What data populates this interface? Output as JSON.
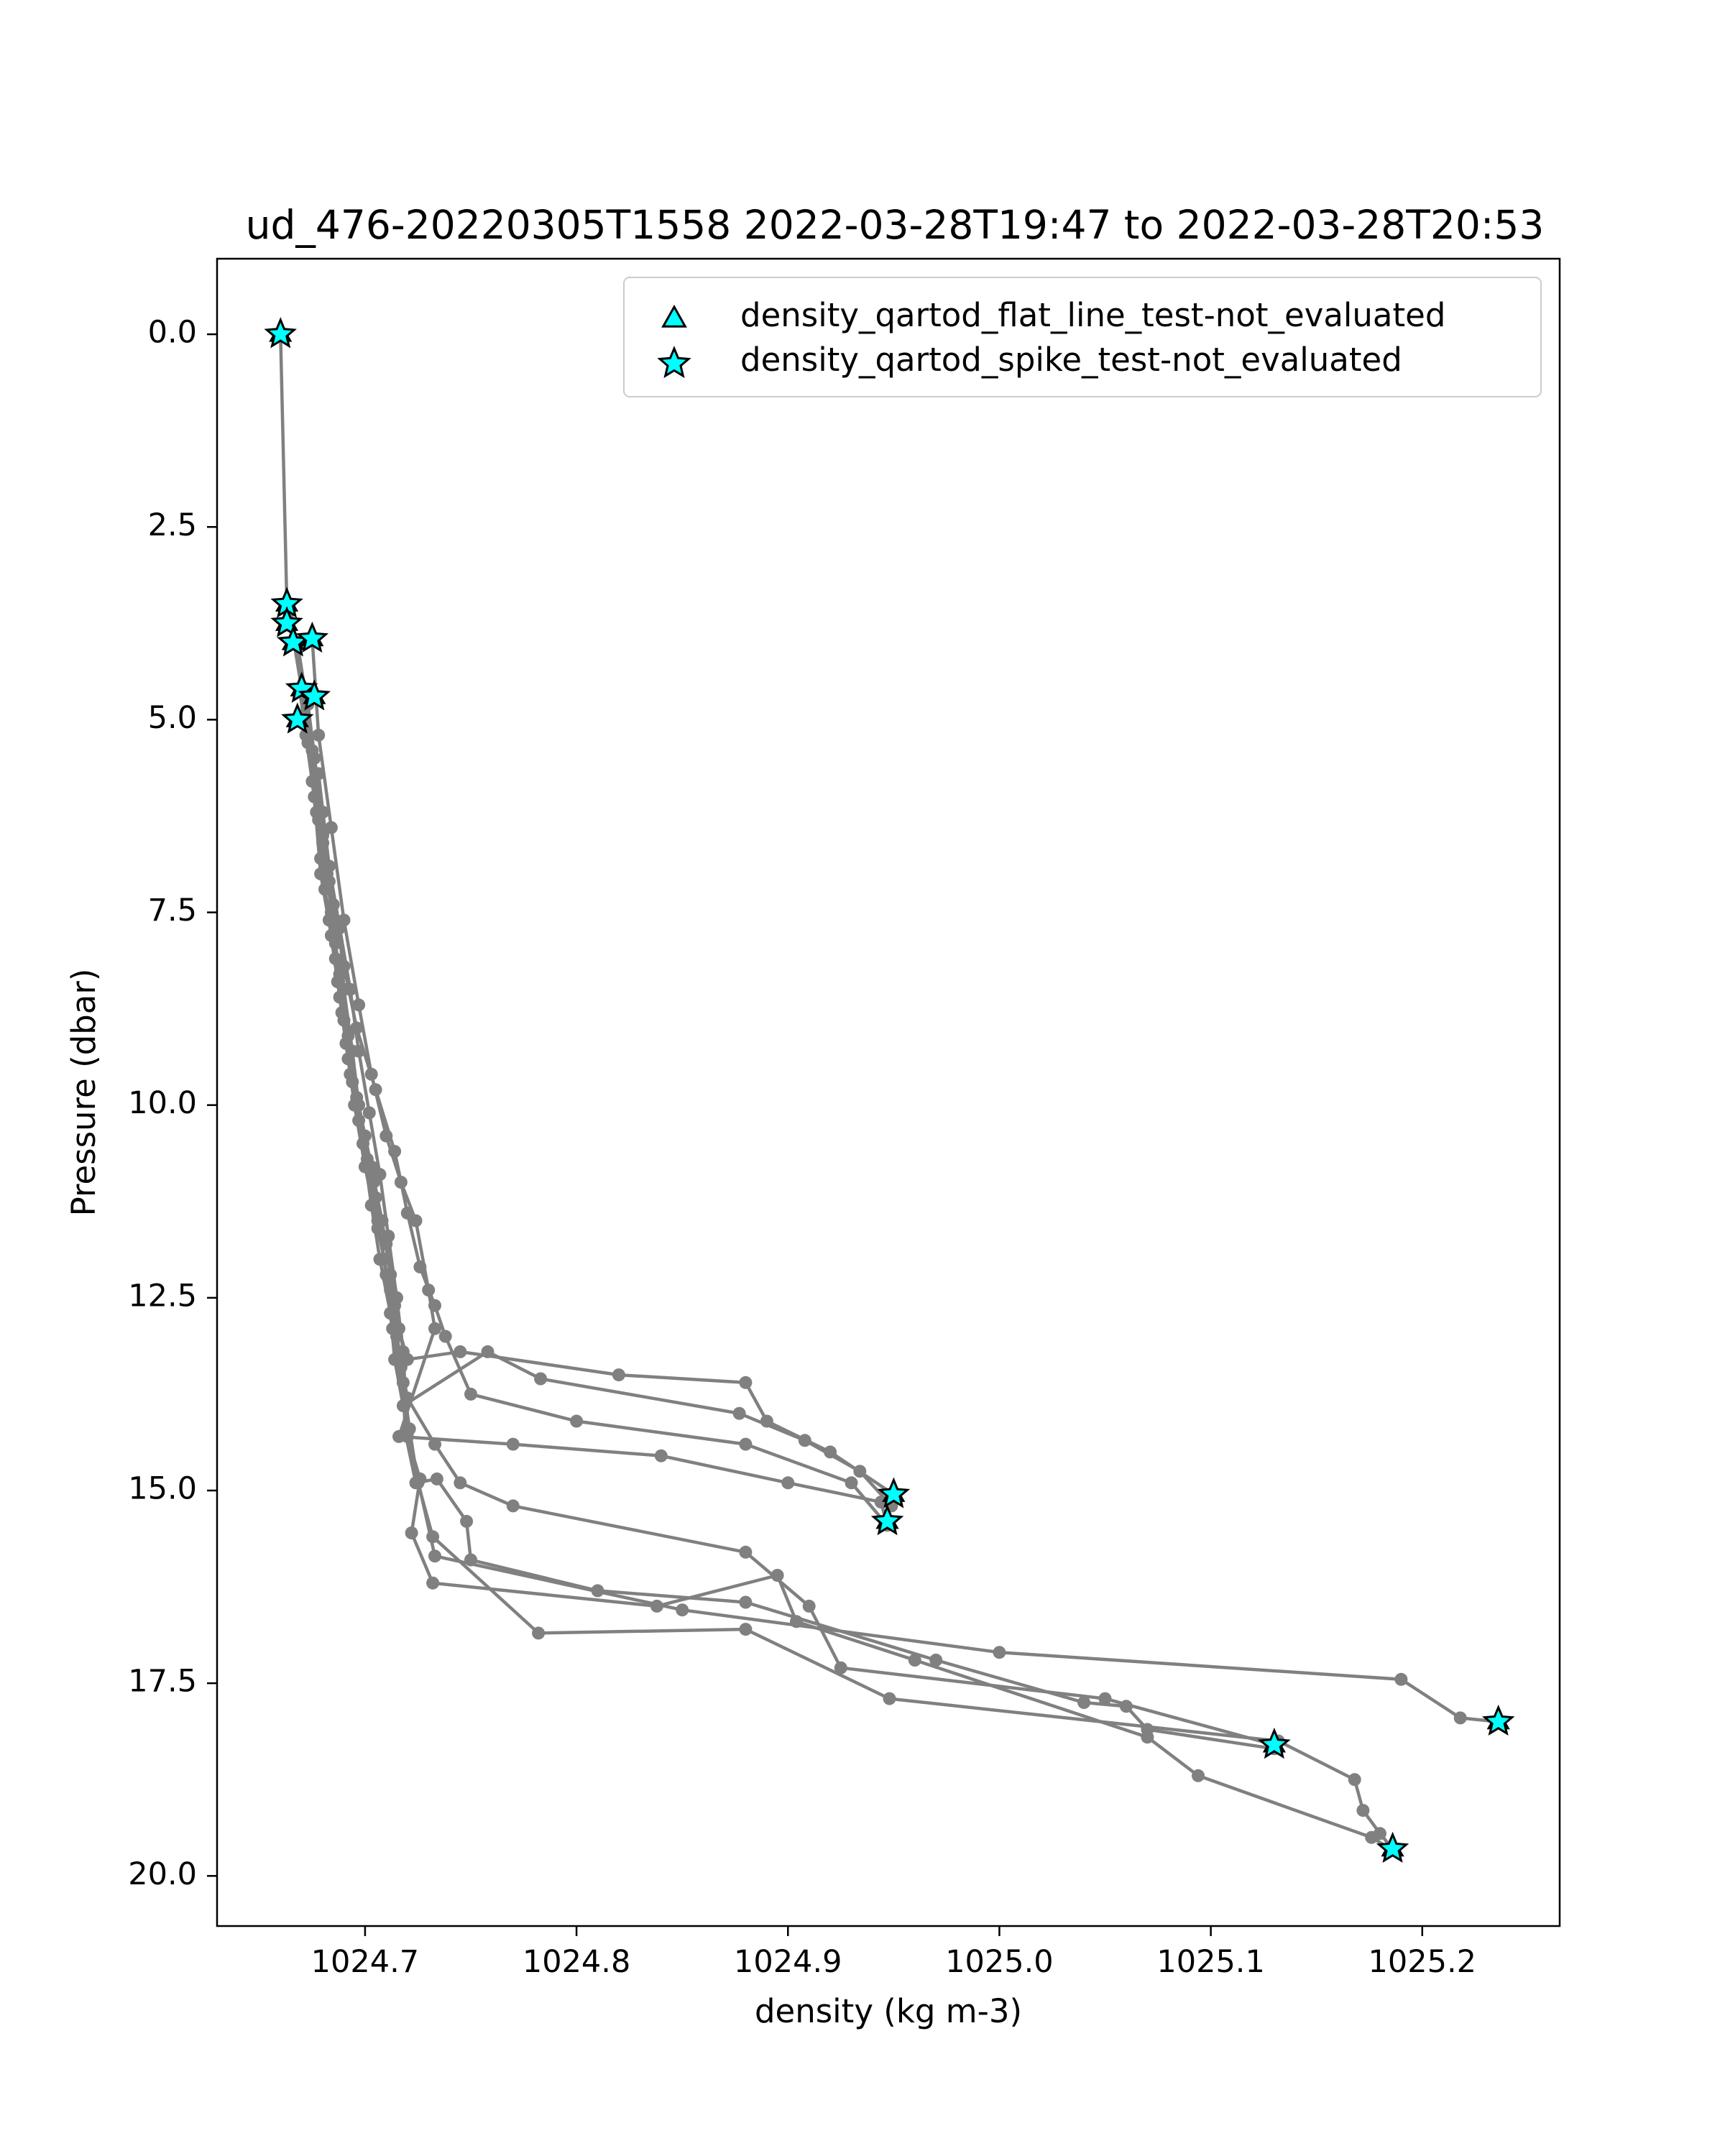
{
  "chart_data": {
    "type": "scatter",
    "title": "ud_476-20220305T1558 2022-03-28T19:47 to 2022-03-28T20:53",
    "xlabel": "density (kg m-3)",
    "ylabel": "Pressure (dbar)",
    "xlim": [
      1024.63,
      1025.265
    ],
    "ylim": [
      20.65,
      -0.98
    ],
    "y_inverted": true,
    "grid": false,
    "legend_position": "upper-right",
    "xticks": [
      1024.7,
      1024.8,
      1024.9,
      1025.0,
      1025.1,
      1025.2
    ],
    "xtick_labels": [
      "1024.7",
      "1024.8",
      "1024.9",
      "1025.0",
      "1025.1",
      "1025.2"
    ],
    "yticks": [
      0.0,
      2.5,
      5.0,
      7.5,
      10.0,
      12.5,
      15.0,
      17.5,
      20.0
    ],
    "ytick_labels": [
      "0.0",
      "2.5",
      "5.0",
      "7.5",
      "10.0",
      "12.5",
      "15.0",
      "17.5",
      "20.0"
    ],
    "colors": {
      "profile_line": "#808080",
      "marker_fill": "#00ffff",
      "marker_edge": "#000000",
      "axes": "#000000"
    },
    "series": [
      {
        "style": "profile",
        "segments": [
          [
            [
              1024.66,
              0.0
            ],
            [
              1024.663,
              3.5
            ],
            [
              1024.668,
              4.0
            ],
            [
              1024.672,
              4.7
            ],
            [
              1024.676,
              5.5
            ],
            [
              1024.68,
              6.2
            ],
            [
              1024.682,
              7.0
            ],
            [
              1024.688,
              7.7
            ],
            [
              1024.69,
              8.5
            ],
            [
              1024.694,
              9.3
            ],
            [
              1024.697,
              10.0
            ],
            [
              1024.703,
              10.8
            ],
            [
              1024.708,
              11.5
            ],
            [
              1024.712,
              12.2
            ],
            [
              1024.716,
              12.9
            ],
            [
              1024.72,
              13.3
            ],
            [
              1024.745,
              13.2
            ],
            [
              1024.82,
              13.5
            ],
            [
              1024.88,
              13.6
            ],
            [
              1024.89,
              14.1
            ],
            [
              1024.92,
              14.5
            ],
            [
              1024.95,
              15.05
            ]
          ],
          [
            [
              1024.664,
              3.6
            ],
            [
              1024.67,
              4.6
            ],
            [
              1024.675,
              5.4
            ],
            [
              1024.678,
              6.3
            ],
            [
              1024.683,
              7.1
            ],
            [
              1024.686,
              7.9
            ],
            [
              1024.689,
              8.8
            ],
            [
              1024.693,
              9.6
            ],
            [
              1024.7,
              10.4
            ],
            [
              1024.705,
              11.2
            ],
            [
              1024.709,
              12.0
            ],
            [
              1024.712,
              12.7
            ],
            [
              1024.714,
              13.3
            ],
            [
              1024.718,
              13.9
            ],
            [
              1024.758,
              13.2
            ],
            [
              1024.783,
              13.55
            ],
            [
              1024.877,
              14.0
            ],
            [
              1024.908,
              14.35
            ],
            [
              1024.934,
              14.75
            ],
            [
              1024.949,
              15.2
            ]
          ],
          [
            [
              1024.667,
              4.0
            ],
            [
              1024.673,
              4.8
            ],
            [
              1024.677,
              5.7
            ],
            [
              1024.68,
              6.6
            ],
            [
              1024.685,
              7.4
            ],
            [
              1024.69,
              8.2
            ],
            [
              1024.696,
              9.0
            ],
            [
              1024.705,
              9.8
            ],
            [
              1024.714,
              10.6
            ],
            [
              1024.72,
              11.4
            ],
            [
              1024.726,
              12.1
            ],
            [
              1024.733,
              12.6
            ],
            [
              1024.738,
              13.0
            ],
            [
              1024.75,
              13.75
            ],
            [
              1024.8,
              14.1
            ],
            [
              1024.88,
              14.4
            ],
            [
              1024.93,
              14.9
            ],
            [
              1024.946,
              15.42
            ]
          ],
          [
            [
              1024.675,
              3.95
            ],
            [
              1024.678,
              5.2
            ],
            [
              1024.684,
              6.4
            ],
            [
              1024.69,
              7.6
            ],
            [
              1024.697,
              8.7
            ],
            [
              1024.703,
              9.6
            ],
            [
              1024.71,
              10.4
            ],
            [
              1024.717,
              11.0
            ],
            [
              1024.724,
              11.5
            ],
            [
              1024.73,
              12.4
            ],
            [
              1024.733,
              12.9
            ],
            [
              1024.716,
              14.3
            ],
            [
              1024.77,
              14.4
            ],
            [
              1024.84,
              14.55
            ],
            [
              1024.9,
              14.9
            ],
            [
              1024.944,
              15.15
            ],
            [
              1024.947,
              15.45
            ]
          ],
          [
            [
              1024.669,
              4.6
            ],
            [
              1024.672,
              5.2
            ],
            [
              1024.676,
              6.0
            ],
            [
              1024.679,
              7.0
            ],
            [
              1024.684,
              7.8
            ],
            [
              1024.688,
              8.6
            ],
            [
              1024.692,
              9.4
            ],
            [
              1024.697,
              10.2
            ],
            [
              1024.704,
              11.0
            ],
            [
              1024.71,
              11.8
            ],
            [
              1024.714,
              12.6
            ],
            [
              1024.716,
              13.2
            ],
            [
              1024.72,
              13.8
            ],
            [
              1024.733,
              14.4
            ],
            [
              1024.745,
              14.9
            ],
            [
              1024.77,
              15.2
            ],
            [
              1024.88,
              15.8
            ],
            [
              1024.91,
              16.5
            ],
            [
              1024.925,
              17.3
            ],
            [
              1025.05,
              17.7
            ],
            [
              1025.13,
              18.3
            ]
          ],
          [
            [
              1024.671,
              5.0
            ],
            [
              1024.675,
              5.8
            ],
            [
              1024.679,
              6.8
            ],
            [
              1024.683,
              7.6
            ],
            [
              1024.687,
              8.4
            ],
            [
              1024.691,
              9.2
            ],
            [
              1024.695,
              10.0
            ],
            [
              1024.7,
              10.8
            ],
            [
              1024.706,
              11.6
            ],
            [
              1024.712,
              12.4
            ],
            [
              1024.715,
              13.0
            ],
            [
              1024.718,
              13.6
            ],
            [
              1024.719,
              14.25
            ],
            [
              1024.724,
              14.9
            ],
            [
              1024.734,
              14.85
            ],
            [
              1024.748,
              15.4
            ],
            [
              1024.75,
              15.9
            ],
            [
              1024.81,
              16.3
            ],
            [
              1024.88,
              16.45
            ],
            [
              1024.97,
              17.2
            ],
            [
              1025.04,
              17.75
            ],
            [
              1025.06,
              17.8
            ],
            [
              1025.07,
              18.1
            ],
            [
              1025.13,
              18.35
            ]
          ],
          [
            [
              1024.673,
              5.3
            ],
            [
              1024.677,
              6.2
            ],
            [
              1024.681,
              7.2
            ],
            [
              1024.686,
              8.1
            ],
            [
              1024.69,
              8.9
            ],
            [
              1024.694,
              9.7
            ],
            [
              1024.699,
              10.5
            ],
            [
              1024.703,
              11.3
            ],
            [
              1024.707,
              12.0
            ],
            [
              1024.712,
              12.7
            ],
            [
              1024.716,
              13.3
            ],
            [
              1024.72,
              14.3
            ],
            [
              1024.726,
              14.85
            ],
            [
              1024.722,
              15.55
            ],
            [
              1024.732,
              16.2
            ],
            [
              1024.838,
              16.5
            ],
            [
              1024.895,
              16.1
            ],
            [
              1024.904,
              16.7
            ],
            [
              1024.96,
              17.2
            ],
            [
              1025.07,
              18.2
            ],
            [
              1025.094,
              18.7
            ],
            [
              1025.176,
              19.5
            ],
            [
              1025.185,
              19.65
            ]
          ],
          [
            [
              1024.676,
              5.5
            ],
            [
              1024.68,
              6.5
            ],
            [
              1024.684,
              7.5
            ],
            [
              1024.688,
              8.3
            ],
            [
              1024.692,
              9.1
            ],
            [
              1024.696,
              9.9
            ],
            [
              1024.701,
              10.7
            ],
            [
              1024.706,
              11.5
            ],
            [
              1024.71,
              12.2
            ],
            [
              1024.713,
              12.9
            ],
            [
              1024.717,
              13.4
            ],
            [
              1024.721,
              14.2
            ],
            [
              1024.725,
              14.9
            ],
            [
              1024.732,
              15.6
            ],
            [
              1024.782,
              16.85
            ],
            [
              1024.88,
              16.8
            ],
            [
              1024.948,
              17.7
            ],
            [
              1025.132,
              18.25
            ],
            [
              1025.168,
              18.75
            ],
            [
              1025.172,
              19.15
            ],
            [
              1025.18,
              19.45
            ],
            [
              1025.186,
              19.65
            ]
          ],
          [
            [
              1024.678,
              5.7
            ],
            [
              1024.683,
              6.9
            ],
            [
              1024.688,
              7.7
            ],
            [
              1024.693,
              8.5
            ],
            [
              1024.697,
              9.3
            ],
            [
              1024.702,
              10.1
            ],
            [
              1024.707,
              10.9
            ],
            [
              1024.711,
              11.7
            ],
            [
              1024.715,
              12.5
            ],
            [
              1024.718,
              13.2
            ],
            [
              1024.72,
              14.25
            ],
            [
              1024.733,
              15.85
            ],
            [
              1024.85,
              16.55
            ],
            [
              1025.0,
              17.1
            ],
            [
              1025.19,
              17.45
            ],
            [
              1025.218,
              17.95
            ],
            [
              1025.236,
              18.0
            ]
          ]
        ]
      },
      {
        "name": "density_qartod_flat_line_test-not_evaluated",
        "marker": "triangle",
        "points": [
          [
            1024.66,
            0.0
          ],
          [
            1024.663,
            3.5
          ],
          [
            1024.663,
            3.75
          ],
          [
            1024.666,
            4.0
          ],
          [
            1024.675,
            3.95
          ],
          [
            1024.67,
            4.6
          ],
          [
            1024.676,
            4.7
          ],
          [
            1024.668,
            5.0
          ],
          [
            1024.95,
            15.05
          ],
          [
            1024.947,
            15.4
          ],
          [
            1025.236,
            18.0
          ],
          [
            1025.13,
            18.3
          ],
          [
            1025.186,
            19.65
          ]
        ]
      },
      {
        "name": "density_qartod_spike_test-not_evaluated",
        "marker": "star",
        "points": [
          [
            1024.66,
            0.0
          ],
          [
            1024.663,
            3.5
          ],
          [
            1024.663,
            3.75
          ],
          [
            1024.666,
            4.0
          ],
          [
            1024.675,
            3.95
          ],
          [
            1024.67,
            4.6
          ],
          [
            1024.676,
            4.7
          ],
          [
            1024.668,
            5.0
          ],
          [
            1024.95,
            15.05
          ],
          [
            1024.947,
            15.4
          ],
          [
            1025.236,
            18.0
          ],
          [
            1025.13,
            18.3
          ],
          [
            1025.186,
            19.65
          ]
        ]
      }
    ]
  }
}
